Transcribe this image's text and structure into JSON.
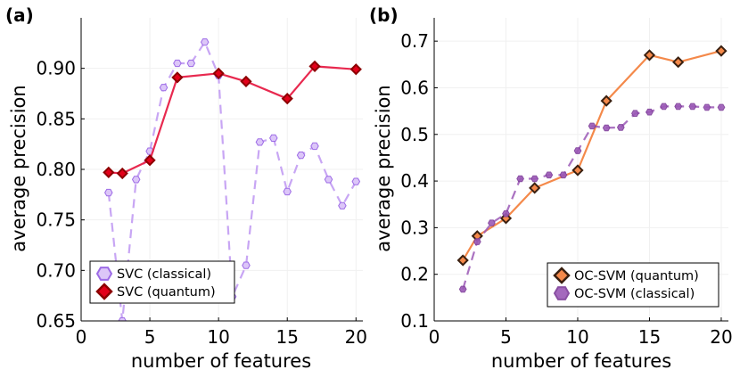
{
  "chart_data": [
    {
      "type": "line",
      "panel_label": "(a)",
      "xlabel": "number of features",
      "ylabel": "average precision",
      "xlim": [
        0,
        20.5
      ],
      "ylim": [
        0.65,
        0.95
      ],
      "xticks": [
        0,
        5,
        10,
        15,
        20
      ],
      "yticks": [
        0.65,
        0.7,
        0.75,
        0.8,
        0.85,
        0.9
      ],
      "ytick_labels": [
        "0.65",
        "0.70",
        "0.75",
        "0.80",
        "0.85",
        "0.90"
      ],
      "legend_position": "bottom-left",
      "series": [
        {
          "name": "SVC (classical)",
          "style": "dashed",
          "marker": "hexagon",
          "color": "#c8a6f4",
          "stroke": "#9d6be6",
          "x": [
            2,
            3,
            4,
            5,
            6,
            7,
            8,
            9,
            10,
            11,
            12,
            13,
            14,
            15,
            16,
            17,
            18,
            19,
            20
          ],
          "y": [
            0.777,
            0.65,
            0.79,
            0.818,
            0.881,
            0.905,
            0.905,
            0.926,
            0.893,
            0.674,
            0.705,
            0.827,
            0.831,
            0.778,
            0.814,
            0.823,
            0.79,
            0.764,
            0.788
          ]
        },
        {
          "name": "SVC (quantum)",
          "style": "solid",
          "marker": "diamond",
          "color": "#e8294f",
          "fill": "#e2001a",
          "stroke": "#8c0000",
          "x": [
            2,
            3,
            5,
            7,
            10,
            12,
            15,
            17,
            20
          ],
          "y": [
            0.797,
            0.796,
            0.809,
            0.891,
            0.895,
            0.887,
            0.87,
            0.902,
            0.899
          ]
        }
      ]
    },
    {
      "type": "line",
      "panel_label": "(b)",
      "xlabel": "number of features",
      "ylabel": "average precision",
      "xlim": [
        0,
        20.5
      ],
      "ylim": [
        0.1,
        0.75
      ],
      "xticks": [
        0,
        5,
        10,
        15,
        20
      ],
      "yticks": [
        0.1,
        0.2,
        0.3,
        0.4,
        0.5,
        0.6,
        0.7
      ],
      "ytick_labels": [
        "0.1",
        "0.2",
        "0.3",
        "0.4",
        "0.5",
        "0.6",
        "0.7"
      ],
      "legend_position": "bottom-right",
      "series": [
        {
          "name": "OC-SVM (quantum)",
          "style": "solid",
          "marker": "diamond",
          "color": "#f4894a",
          "fill": "#f4894a",
          "stroke": "#3a2010",
          "x": [
            2,
            3,
            5,
            7,
            10,
            12,
            15,
            17,
            20
          ],
          "y": [
            0.23,
            0.282,
            0.32,
            0.385,
            0.423,
            0.572,
            0.67,
            0.655,
            0.679
          ]
        },
        {
          "name": "OC-SVM (classical)",
          "style": "dashed",
          "marker": "hexagon",
          "color": "#9b59b6",
          "fill": "#9b59b6",
          "stroke": "#7d3c98",
          "x": [
            2,
            3,
            4,
            5,
            6,
            7,
            8,
            9,
            10,
            11,
            12,
            13,
            14,
            15,
            16,
            17,
            18,
            19,
            20
          ],
          "y": [
            0.168,
            0.27,
            0.31,
            0.33,
            0.405,
            0.405,
            0.413,
            0.413,
            0.465,
            0.518,
            0.514,
            0.515,
            0.545,
            0.548,
            0.56,
            0.56,
            0.56,
            0.558,
            0.558
          ]
        }
      ]
    }
  ]
}
